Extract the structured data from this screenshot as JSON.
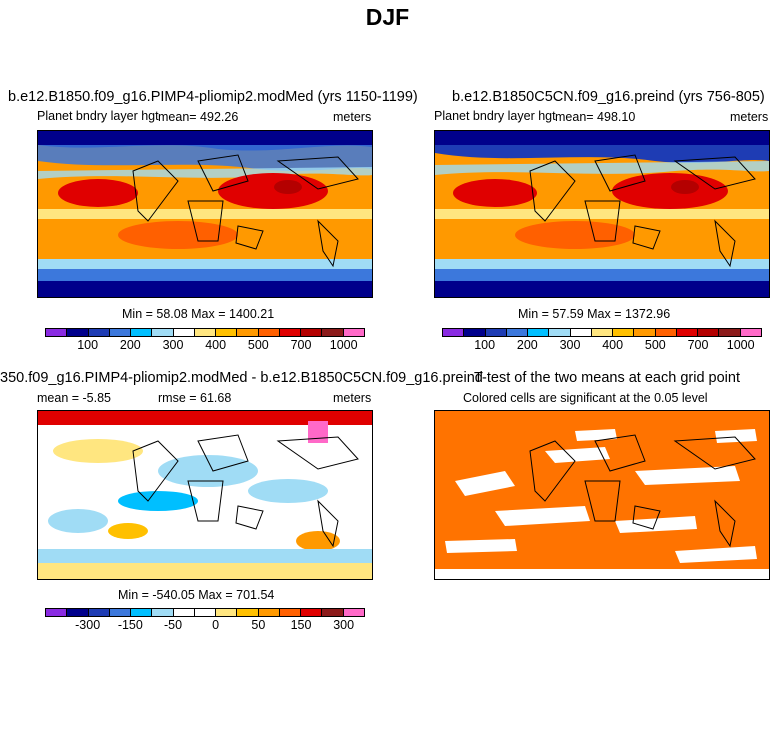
{
  "title": "DJF",
  "panels": {
    "p1": {
      "title": "b.e12.B1850.f09_g16.PIMP4-pliomip2.modMed (yrs 1150-1199)",
      "left": "Planet bndry layer hgt",
      "mean": "mean= 492.26",
      "units": "meters",
      "minmax": "Min =  58.08 Max = 1400.21"
    },
    "p2": {
      "title": "b.e12.B1850C5CN.f09_g16.preind (yrs 756-805)",
      "left": "Planet bndry layer hgt",
      "mean": "mean= 498.10",
      "units": "meters",
      "minmax": "Min =  57.59 Max = 1372.96"
    },
    "p3": {
      "title": "350.f09_g16.PIMP4-pliomip2.modMed - b.e12.B1850C5CN.f09_g16.preind",
      "mean": "mean =  -5.85",
      "rmse": "rmse =  61.68",
      "units": "meters",
      "minmax": "Min = -540.05 Max = 701.54"
    },
    "p4": {
      "title": "T-test of the two means at each grid point",
      "sub": "Colored cells are significant at the 0.05 level"
    }
  },
  "colorbar_abs": {
    "colors": [
      "#8a2be2",
      "#00008b",
      "#1e3cb4",
      "#3c78dc",
      "#00bfff",
      "#a0dcf5",
      "#ffffff",
      "#ffe680",
      "#ffc000",
      "#ff9900",
      "#ff6000",
      "#e00000",
      "#b40000",
      "#8b1a1a",
      "#ff69c8"
    ],
    "labels": [
      "100",
      "200",
      "300",
      "400",
      "500",
      "700",
      "1000"
    ]
  },
  "colorbar_diff": {
    "colors": [
      "#8a2be2",
      "#00008b",
      "#1e3cb4",
      "#3c78dc",
      "#00bfff",
      "#a0dcf5",
      "#ffffff",
      "#ffffff",
      "#ffe680",
      "#ffc000",
      "#ff9900",
      "#ff6000",
      "#e00000",
      "#8b1a1a",
      "#ff69c8"
    ],
    "labels": [
      "-300",
      "-150",
      "-50",
      "0",
      "50",
      "150",
      "300"
    ]
  },
  "colors": {
    "ttest_fill": "#ff7300"
  }
}
